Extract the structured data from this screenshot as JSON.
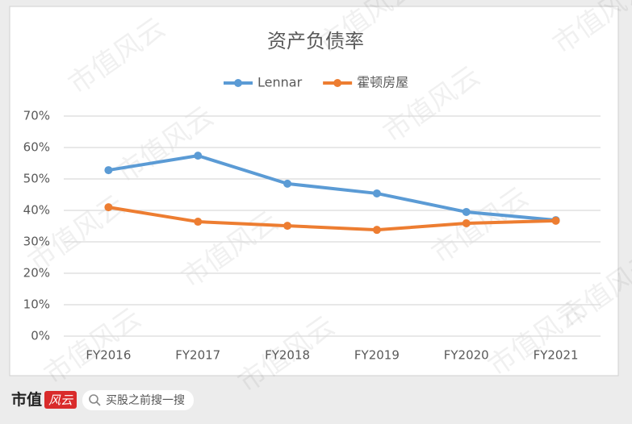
{
  "chart_data": {
    "type": "line",
    "title": "资产负债率",
    "categories": [
      "FY2016",
      "FY2017",
      "FY2018",
      "FY2019",
      "FY2020",
      "FY2021"
    ],
    "series": [
      {
        "name": "Lennar",
        "color": "#5b9bd5",
        "values": [
          52.8,
          57.4,
          48.5,
          45.4,
          39.5,
          36.9
        ]
      },
      {
        "name": "霍顿房屋",
        "color": "#ed7d31",
        "values": [
          41.0,
          36.4,
          35.1,
          33.8,
          35.9,
          36.7
        ]
      }
    ],
    "ylim": [
      0,
      70
    ],
    "yticks": [
      {
        "value": 0,
        "label": "0%"
      },
      {
        "value": 10,
        "label": "10%"
      },
      {
        "value": 20,
        "label": "20%"
      },
      {
        "value": 30,
        "label": "30%"
      },
      {
        "value": 40,
        "label": "40%"
      },
      {
        "value": 50,
        "label": "50%"
      },
      {
        "value": 60,
        "label": "60%"
      },
      {
        "value": 70,
        "label": "70%"
      }
    ],
    "grid": true,
    "legend": "top"
  },
  "footer": {
    "logo": "市值",
    "logo_mark": "风云",
    "search": "买股之前搜一搜"
  },
  "watermark": "市值风云"
}
